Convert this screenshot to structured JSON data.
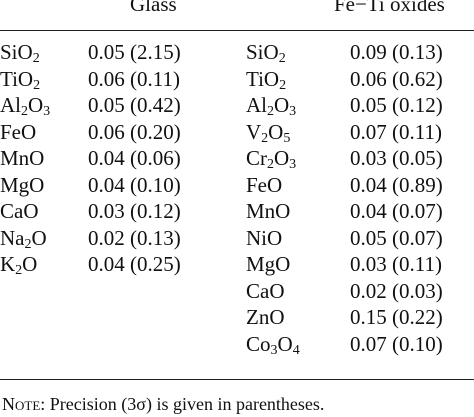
{
  "headers": {
    "glass": "Glass",
    "fe_ti": "Fe−Ti oxides"
  },
  "glass_rows": [
    {
      "oxide": [
        {
          "t": "SiO"
        },
        {
          "sub": "2"
        }
      ],
      "value": "0.05 (2.15)"
    },
    {
      "oxide": [
        {
          "t": "TiO"
        },
        {
          "sub": "2"
        }
      ],
      "value": "0.06 (0.11)"
    },
    {
      "oxide": [
        {
          "t": "Al"
        },
        {
          "sub": "2"
        },
        {
          "t": "O"
        },
        {
          "sub": "3"
        }
      ],
      "value": "0.05 (0.42)"
    },
    {
      "oxide": [
        {
          "t": "FeO"
        }
      ],
      "value": "0.06 (0.20)"
    },
    {
      "oxide": [
        {
          "t": "MnO"
        }
      ],
      "value": "0.04 (0.06)"
    },
    {
      "oxide": [
        {
          "t": "MgO"
        }
      ],
      "value": "0.04 (0.10)"
    },
    {
      "oxide": [
        {
          "t": "CaO"
        }
      ],
      "value": "0.03 (0.12)"
    },
    {
      "oxide": [
        {
          "t": "Na"
        },
        {
          "sub": "2"
        },
        {
          "t": "O"
        }
      ],
      "value": "0.02 (0.13)"
    },
    {
      "oxide": [
        {
          "t": "K"
        },
        {
          "sub": "2"
        },
        {
          "t": "O"
        }
      ],
      "value": "0.04 (0.25)"
    }
  ],
  "fe_ti_rows": [
    {
      "oxide": [
        {
          "t": "SiO"
        },
        {
          "sub": "2"
        }
      ],
      "value": "0.09 (0.13)"
    },
    {
      "oxide": [
        {
          "t": "TiO"
        },
        {
          "sub": "2"
        }
      ],
      "value": "0.06 (0.62)"
    },
    {
      "oxide": [
        {
          "t": "Al"
        },
        {
          "sub": "2"
        },
        {
          "t": "O"
        },
        {
          "sub": "3"
        }
      ],
      "value": "0.05 (0.12)"
    },
    {
      "oxide": [
        {
          "t": "V"
        },
        {
          "sub": "2"
        },
        {
          "t": "O"
        },
        {
          "sub": "5"
        }
      ],
      "value": "0.07 (0.11)"
    },
    {
      "oxide": [
        {
          "t": "Cr"
        },
        {
          "sub": "2"
        },
        {
          "t": "O"
        },
        {
          "sub": "3"
        }
      ],
      "value": "0.03 (0.05)"
    },
    {
      "oxide": [
        {
          "t": "FeO"
        }
      ],
      "value": "0.04 (0.89)"
    },
    {
      "oxide": [
        {
          "t": "MnO"
        }
      ],
      "value": "0.04 (0.07)"
    },
    {
      "oxide": [
        {
          "t": "NiO"
        }
      ],
      "value": "0.05 (0.07)"
    },
    {
      "oxide": [
        {
          "t": "MgO"
        }
      ],
      "value": "0.03 (0.11)"
    },
    {
      "oxide": [
        {
          "t": "CaO"
        }
      ],
      "value": "0.02 (0.03)"
    },
    {
      "oxide": [
        {
          "t": "ZnO"
        }
      ],
      "value": "0.15 (0.22)"
    },
    {
      "oxide": [
        {
          "t": "Co"
        },
        {
          "sub": "3"
        },
        {
          "t": "O"
        },
        {
          "sub": "4"
        }
      ],
      "value": "0.07 (0.10)"
    }
  ],
  "note": {
    "label": "Note:",
    "text": " Precision (3σ) is given in parentheses."
  }
}
